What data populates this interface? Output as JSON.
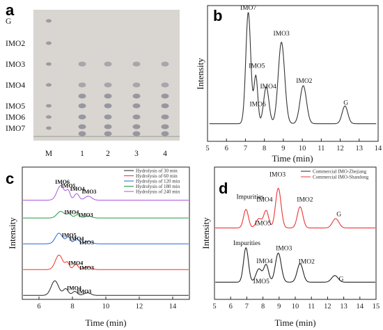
{
  "panels": {
    "a": {
      "label": "a",
      "type": "tlc",
      "row_labels": [
        "G",
        "IMO2",
        "IMO3",
        "IMO4",
        "IMO5",
        "IMO6",
        "IMO7"
      ],
      "lane_labels": [
        "M",
        "1",
        "2",
        "3",
        "4"
      ],
      "colors": {
        "plate": "#d9d6d1",
        "spot": "#6d6a7c"
      }
    },
    "b": {
      "label": "b",
      "chart_data": {
        "type": "line",
        "xlabel": "Time (min)",
        "ylabel": "Intensity",
        "xlim": [
          5,
          14
        ],
        "xticks": [
          5,
          6,
          7,
          8,
          9,
          10,
          11,
          12,
          13,
          14
        ],
        "series": [
          {
            "color": "#333333",
            "baseline": 0.13,
            "peaks": [
              {
                "t": 7.15,
                "h": 0.82,
                "w": 0.13
              },
              {
                "t": 7.55,
                "h": 0.35,
                "w": 0.1
              },
              {
                "t": 8.1,
                "h": 0.27,
                "w": 0.14
              },
              {
                "t": 8.9,
                "h": 0.6,
                "w": 0.17
              },
              {
                "t": 10.05,
                "h": 0.28,
                "w": 0.17
              },
              {
                "t": 12.25,
                "h": 0.13,
                "w": 0.15
              }
            ]
          }
        ],
        "annotations": [
          {
            "text": "IMO7",
            "x": 7.15,
            "y": 0.97
          },
          {
            "text": "IMO5",
            "x": 7.6,
            "y": 0.54
          },
          {
            "text": "IMO6",
            "x": 7.65,
            "y": 0.26
          },
          {
            "text": "IMO4",
            "x": 8.2,
            "y": 0.39
          },
          {
            "text": "IMO3",
            "x": 8.9,
            "y": 0.78
          },
          {
            "text": "IMO2",
            "x": 10.1,
            "y": 0.43
          },
          {
            "text": "G",
            "x": 12.3,
            "y": 0.27
          }
        ]
      }
    },
    "c": {
      "label": "c",
      "chart_data": {
        "type": "line",
        "xlabel": "Time (min)",
        "ylabel": "Intensity",
        "xlim": [
          5,
          15
        ],
        "xticks": [
          6,
          8,
          10,
          12,
          14
        ],
        "legend": "top-right",
        "series": [
          {
            "name": "Hydrolysis of 30 min",
            "color": "#222222",
            "offset": 0.0,
            "peaks": [
              {
                "t": 6.95,
                "h": 0.11,
                "w": 0.22
              },
              {
                "t": 7.6,
                "h": 0.05,
                "w": 0.15
              },
              {
                "t": 8.15,
                "h": 0.03,
                "w": 0.15
              },
              {
                "t": 8.9,
                "h": 0.02,
                "w": 0.2
              }
            ]
          },
          {
            "name": "Hydrolysis of 60 min",
            "color": "#ee3322",
            "offset": 0.195,
            "peaks": [
              {
                "t": 7.2,
                "h": 0.11,
                "w": 0.22
              },
              {
                "t": 7.7,
                "h": 0.05,
                "w": 0.12
              },
              {
                "t": 8.2,
                "h": 0.04,
                "w": 0.14
              },
              {
                "t": 8.9,
                "h": 0.02,
                "w": 0.22
              }
            ]
          },
          {
            "name": "Hydrolysis of 120 min",
            "color": "#2266dd",
            "offset": 0.39,
            "peaks": [
              {
                "t": 7.2,
                "h": 0.08,
                "w": 0.22
              },
              {
                "t": 7.75,
                "h": 0.05,
                "w": 0.13
              },
              {
                "t": 8.25,
                "h": 0.04,
                "w": 0.14
              },
              {
                "t": 8.95,
                "h": 0.02,
                "w": 0.2
              }
            ]
          },
          {
            "name": "Hydrolysis of 180 min",
            "color": "#229944",
            "offset": 0.585,
            "peaks": [
              {
                "t": 7.3,
                "h": 0.05,
                "w": 0.22
              },
              {
                "t": 7.8,
                "h": 0.03,
                "w": 0.14
              },
              {
                "t": 8.3,
                "h": 0.025,
                "w": 0.15
              },
              {
                "t": 8.95,
                "h": 0.015,
                "w": 0.2
              }
            ]
          },
          {
            "name": "Hydrolysis of 240 min",
            "color": "#aa55dd",
            "offset": 0.72,
            "peaks": [
              {
                "t": 7.3,
                "h": 0.11,
                "w": 0.22
              },
              {
                "t": 7.75,
                "h": 0.065,
                "w": 0.12
              },
              {
                "t": 8.25,
                "h": 0.05,
                "w": 0.14
              },
              {
                "t": 8.95,
                "h": 0.03,
                "w": 0.2
              }
            ]
          }
        ],
        "annotations": [
          {
            "text": "IMO6",
            "x": 7.4,
            "y": 0.875
          },
          {
            "text": "IMO5",
            "x": 7.75,
            "y": 0.845
          },
          {
            "text": "IMO4",
            "x": 8.3,
            "y": 0.82
          },
          {
            "text": "IMO3",
            "x": 9.0,
            "y": 0.8
          },
          {
            "text": "IMO4",
            "x": 7.95,
            "y": 0.645
          },
          {
            "text": "IMO3",
            "x": 8.8,
            "y": 0.625
          },
          {
            "text": "IMO5",
            "x": 7.8,
            "y": 0.47
          },
          {
            "text": "IMO4",
            "x": 8.25,
            "y": 0.445
          },
          {
            "text": "IMO3",
            "x": 8.85,
            "y": 0.415
          },
          {
            "text": "IMO4",
            "x": 8.2,
            "y": 0.26
          },
          {
            "text": "IMO3",
            "x": 8.85,
            "y": 0.225
          },
          {
            "text": "IMO4",
            "x": 8.1,
            "y": 0.07
          },
          {
            "text": "IMO3",
            "x": 8.7,
            "y": 0.045
          }
        ]
      }
    },
    "d": {
      "label": "d",
      "chart_data": {
        "type": "line",
        "xlabel": "Time (min)",
        "ylabel": "Intensity",
        "xlim": [
          5,
          15
        ],
        "xticks": [
          5,
          6,
          7,
          8,
          9,
          10,
          11,
          12,
          13,
          14,
          15
        ],
        "legend": "top-right",
        "series": [
          {
            "name": "Commercial IMO-Zhejiang",
            "color": "#222222",
            "offset": 0.11,
            "peaks": [
              {
                "t": 6.95,
                "h": 0.26,
                "w": 0.15
              },
              {
                "t": 7.75,
                "h": 0.1,
                "w": 0.18
              },
              {
                "t": 8.2,
                "h": 0.13,
                "w": 0.15
              },
              {
                "t": 8.95,
                "h": 0.22,
                "w": 0.18
              },
              {
                "t": 10.3,
                "h": 0.14,
                "w": 0.18
              },
              {
                "t": 12.45,
                "h": 0.05,
                "w": 0.2
              }
            ]
          },
          {
            "name": "Commercial IMO-Shandong",
            "color": "#ee3333",
            "offset": 0.52,
            "peaks": [
              {
                "t": 6.95,
                "h": 0.14,
                "w": 0.15
              },
              {
                "t": 7.75,
                "h": 0.07,
                "w": 0.18
              },
              {
                "t": 8.2,
                "h": 0.13,
                "w": 0.15
              },
              {
                "t": 8.95,
                "h": 0.3,
                "w": 0.17
              },
              {
                "t": 10.3,
                "h": 0.16,
                "w": 0.17
              },
              {
                "t": 12.5,
                "h": 0.07,
                "w": 0.2
              }
            ]
          }
        ],
        "annotations": [
          {
            "text": "IMO3",
            "x": 8.9,
            "y": 0.93
          },
          {
            "text": "Impurities",
            "x": 7.2,
            "y": 0.76
          },
          {
            "text": "IMO4",
            "x": 8.1,
            "y": 0.74
          },
          {
            "text": "IMO2",
            "x": 10.6,
            "y": 0.74
          },
          {
            "text": "IMO5",
            "x": 8.0,
            "y": 0.56
          },
          {
            "text": "G",
            "x": 12.7,
            "y": 0.63
          },
          {
            "text": "Impurities",
            "x": 7.0,
            "y": 0.41
          },
          {
            "text": "IMO3",
            "x": 9.3,
            "y": 0.37
          },
          {
            "text": "IMO4",
            "x": 8.1,
            "y": 0.275
          },
          {
            "text": "IMO2",
            "x": 10.7,
            "y": 0.27
          },
          {
            "text": "IMO5",
            "x": 7.9,
            "y": 0.12
          },
          {
            "text": "G",
            "x": 12.85,
            "y": 0.14
          }
        ]
      }
    }
  }
}
